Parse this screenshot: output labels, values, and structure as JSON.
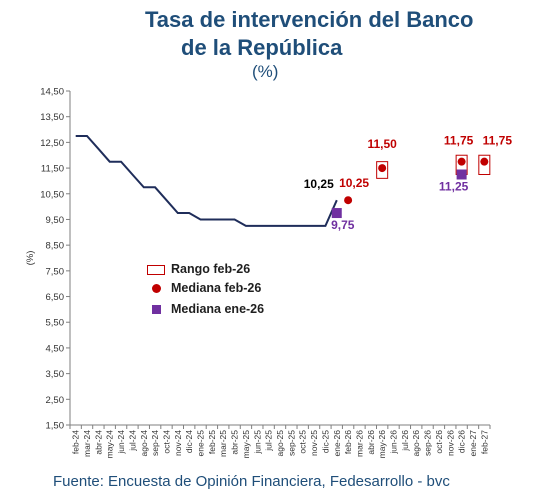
{
  "title_line1": "Tasa de intervención del Banco",
  "title_line2": "de la República",
  "subtitle": "(%)",
  "source": "Fuente: Encuesta de Opinión Financiera, Fedesarrollo - bvc",
  "colors": {
    "title": "#1f4e79",
    "line": "#1f2d5a",
    "median_feb": "#c00000",
    "median_ene": "#7030a0",
    "range": "#c00000"
  },
  "chart_data": {
    "type": "line",
    "ylabel": "(%)",
    "ylim": [
      1.5,
      14.5
    ],
    "yticks": [
      "1,50",
      "2,50",
      "3,50",
      "4,50",
      "5,50",
      "6,50",
      "7,50",
      "8,50",
      "9,50",
      "10,50",
      "11,50",
      "12,50",
      "13,50",
      "14,50"
    ],
    "categories": [
      "feb-24",
      "mar-24",
      "abr-24",
      "may-24",
      "jun-24",
      "jul-24",
      "ago-24",
      "sep-24",
      "oct-24",
      "nov-24",
      "dic-24",
      "ene-25",
      "feb-25",
      "mar-25",
      "abr-25",
      "may-25",
      "jun-25",
      "jul-25",
      "ago-25",
      "sep-25",
      "oct-25",
      "nov-25",
      "dic-25",
      "ene-26",
      "feb-26",
      "mar-26",
      "abr-26",
      "may-26",
      "jun-26",
      "jul-26",
      "ago-26",
      "sep-26",
      "oct-26",
      "nov-26",
      "dic-26",
      "ene-27",
      "feb-27"
    ],
    "series": [
      {
        "name": "",
        "type": "line",
        "values": [
          12.75,
          12.75,
          12.25,
          11.75,
          11.75,
          11.25,
          10.75,
          10.75,
          10.25,
          9.75,
          9.75,
          9.5,
          9.5,
          9.5,
          9.5,
          9.25,
          9.25,
          9.25,
          9.25,
          9.25,
          9.25,
          9.25,
          9.25,
          10.25,
          null,
          null,
          null,
          null,
          null,
          null,
          null,
          null,
          null,
          null,
          null,
          null,
          null
        ]
      },
      {
        "name": "Rango feb-26",
        "type": "range",
        "points": [
          {
            "x": "may-26",
            "low": 11.1,
            "high": 11.75
          },
          {
            "x": "dic-26",
            "low": 11.25,
            "high": 12.0
          },
          {
            "x": "feb-27",
            "low": 11.25,
            "high": 12.0
          }
        ]
      },
      {
        "name": "Mediana feb-26",
        "type": "marker",
        "points": [
          {
            "x": "feb-26",
            "y": 10.25
          },
          {
            "x": "may-26",
            "y": 11.5
          },
          {
            "x": "dic-26",
            "y": 11.75
          },
          {
            "x": "feb-27",
            "y": 11.75
          }
        ]
      },
      {
        "name": "Mediana ene-26",
        "type": "marker",
        "points": [
          {
            "x": "ene-26",
            "y": 9.75
          },
          {
            "x": "dic-26",
            "y": 11.25
          }
        ]
      }
    ],
    "annotations": [
      {
        "text": "10,25",
        "x": "ene-26",
        "y": 10.25,
        "color": "#000000"
      },
      {
        "text": "10,25",
        "x": "feb-26",
        "y": 10.25,
        "color": "#c00000"
      },
      {
        "text": "9,75",
        "x": "ene-26",
        "y": 9.75,
        "color": "#7030a0"
      },
      {
        "text": "11,50",
        "x": "may-26",
        "y": 11.5,
        "color": "#c00000"
      },
      {
        "text": "11,75",
        "x": "dic-26",
        "y": 11.75,
        "color": "#c00000"
      },
      {
        "text": "11,75",
        "x": "feb-27",
        "y": 11.75,
        "color": "#c00000"
      },
      {
        "text": "11,25",
        "x": "dic-26",
        "y": 11.25,
        "color": "#7030a0"
      }
    ],
    "legend": {
      "placement": "center-left",
      "items": [
        "Rango feb-26",
        "Mediana feb-26",
        "Mediana ene-26"
      ]
    }
  }
}
